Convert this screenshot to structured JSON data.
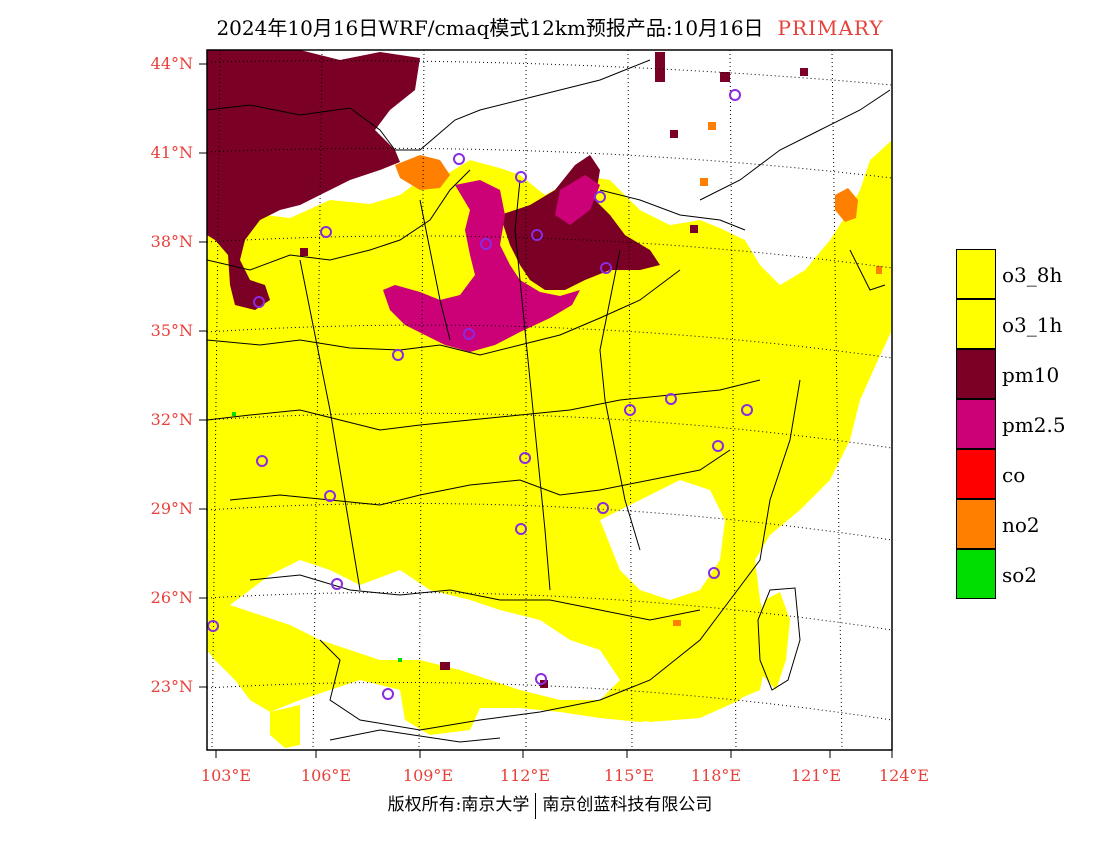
{
  "title": {
    "main": "2024年10月16日WRF/cmaq模式12km预报产品:10月16日",
    "tag": "PRIMARY"
  },
  "axes": {
    "lat_labels": [
      "44°N",
      "41°N",
      "38°N",
      "35°N",
      "32°N",
      "29°N",
      "26°N",
      "23°N"
    ],
    "lon_labels": [
      "103°E",
      "106°E",
      "109°E",
      "112°E",
      "115°E",
      "118°E",
      "121°E",
      "124°E"
    ]
  },
  "legend": {
    "items": [
      {
        "label": "o3_8h",
        "color": "#ffff00"
      },
      {
        "label": "o3_1h",
        "color": "#ffff00"
      },
      {
        "label": "pm10",
        "color": "#7a0026"
      },
      {
        "label": "pm2.5",
        "color": "#cc0077"
      },
      {
        "label": "co",
        "color": "#ff0000"
      },
      {
        "label": "no2",
        "color": "#ff7f00"
      },
      {
        "label": "so2",
        "color": "#00dd00"
      }
    ]
  },
  "footer": {
    "left": "版权所有:南京大学",
    "right": "南京创蓝科技有限公司"
  },
  "colors": {
    "axis_label": "#e8403a",
    "o3": "#ffff00",
    "pm10": "#7a0026",
    "pm25": "#cc0077",
    "no2": "#ff7f00",
    "station": "#8a2be2"
  }
}
